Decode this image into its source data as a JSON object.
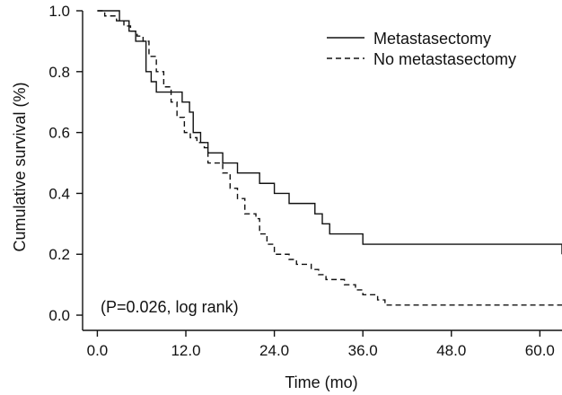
{
  "chart_data": {
    "type": "line",
    "title": "",
    "xlabel": "Time (mo)",
    "ylabel": "Cumulative survival (%)",
    "xlim": [
      -2,
      63
    ],
    "ylim": [
      -0.05,
      1.0
    ],
    "x_ticks": [
      0,
      12,
      24,
      36,
      48,
      60
    ],
    "x_tick_labels": [
      "0.0",
      "12.0",
      "24.0",
      "36.0",
      "48.0",
      "60.0"
    ],
    "y_ticks": [
      0.0,
      0.2,
      0.4,
      0.6,
      0.8,
      1.0
    ],
    "y_tick_labels": [
      "0.0",
      "0.2",
      "0.4",
      "0.6",
      "0.8",
      "1.0"
    ],
    "grid": false,
    "legend_position": "top-right",
    "annotation": "(P=0.026, log rank)",
    "series": [
      {
        "name": "Metastasectomy",
        "style": "solid",
        "color": "#111111",
        "x": [
          0,
          3.0,
          4.3,
          5.2,
          6.6,
          7.3,
          8.0,
          11.5,
          12.5,
          13.0,
          14.0,
          15.0,
          17.0,
          19.0,
          22.0,
          24.0,
          26.0,
          29.5,
          30.5,
          31.5,
          36.0,
          63.0
        ],
        "y": [
          1.0,
          0.967,
          0.933,
          0.9,
          0.8,
          0.767,
          0.733,
          0.7,
          0.667,
          0.6,
          0.567,
          0.533,
          0.5,
          0.467,
          0.433,
          0.4,
          0.367,
          0.333,
          0.3,
          0.267,
          0.233,
          0.2
        ]
      },
      {
        "name": "No metastasectomy",
        "style": "dashed",
        "color": "#111111",
        "x": [
          0,
          1.0,
          2.6,
          3.6,
          4.5,
          5.4,
          6.2,
          7.0,
          8.0,
          9.0,
          10.0,
          10.8,
          11.8,
          12.6,
          13.5,
          14.5,
          15.0,
          17.0,
          18.0,
          19.0,
          20.0,
          21.5,
          22.0,
          23.0,
          24.0,
          26.0,
          27.0,
          29.0,
          30.0,
          31.0,
          33.5,
          35.0,
          36.0,
          38.0,
          39.0,
          60.5,
          63.0
        ],
        "y": [
          1.0,
          0.983,
          0.967,
          0.95,
          0.933,
          0.917,
          0.9,
          0.85,
          0.8,
          0.75,
          0.7,
          0.65,
          0.6,
          0.583,
          0.567,
          0.55,
          0.5,
          0.467,
          0.417,
          0.383,
          0.333,
          0.317,
          0.267,
          0.233,
          0.2,
          0.183,
          0.167,
          0.15,
          0.133,
          0.117,
          0.1,
          0.083,
          0.067,
          0.05,
          0.033,
          0.033,
          0.033
        ]
      }
    ]
  }
}
